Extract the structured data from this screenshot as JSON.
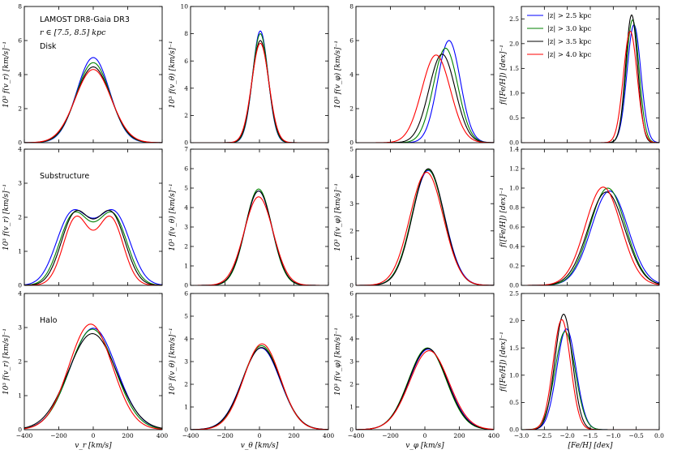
{
  "chart_data": {
    "type": "line",
    "annotations": {
      "title": "LAMOST DR8-Gaia DR3",
      "r_range": "r ∈ [7.5, 8.5] kpc",
      "rows": [
        "Disk",
        "Substructure",
        "Halo"
      ]
    },
    "legend": [
      {
        "label": "|z| > 2.5 kpc",
        "color": "#0000ff"
      },
      {
        "label": "|z| > 3.0 kpc",
        "color": "#008000"
      },
      {
        "label": "|z| > 3.5 kpc",
        "color": "#000000"
      },
      {
        "label": "|z| > 4.0 kpc",
        "color": "#ff0000"
      }
    ],
    "legend_placement": "top-left of top-right panel",
    "xlabels": [
      "v_r [km/s]",
      "v_θ [km/s]",
      "v_φ [km/s]",
      "[Fe/H] [dex]"
    ],
    "ylabels": [
      [
        "10³ f(v_r) [km/s]⁻¹",
        "10³ f(v_θ) [km/s]⁻¹",
        "10³ f(v_φ) [km/s]⁻¹",
        "f([Fe/H]) [dex]⁻¹"
      ],
      [
        "10³ f(v_r) [km/s]⁻¹",
        "10³ f(v_θ) [km/s]⁻¹",
        "10³ f(v_φ) [km/s]⁻¹",
        "f([Fe/H]) [dex]⁻¹"
      ],
      [
        "10³ f(v_r) [km/s]⁻¹",
        "10³ f(v_θ) [km/s]⁻¹",
        "10³ f(v_φ) [km/s]⁻¹",
        "f([Fe/H]) [dex]⁻¹"
      ]
    ],
    "xranges": [
      [
        -400,
        400
      ],
      [
        -400,
        400
      ],
      [
        -400,
        400
      ],
      [
        -3.0,
        0.0
      ]
    ],
    "xticks": [
      [
        -400,
        -200,
        0,
        200,
        400
      ],
      [
        -400,
        -200,
        0,
        200,
        400
      ],
      [
        -400,
        -200,
        0,
        200,
        400
      ],
      [
        -3.0,
        -2.5,
        -2.0,
        -1.5,
        -1.0,
        -0.5,
        0.0
      ]
    ],
    "xticklabels": [
      [
        "−400",
        "−200",
        "0",
        "200",
        "400"
      ],
      [
        "−400",
        "−200",
        "0",
        "200",
        "400"
      ],
      [
        "−400",
        "−200",
        "0",
        "200",
        "400"
      ],
      [
        "−3.0",
        "−2.5",
        "−2.0",
        "−1.5",
        "−1.0",
        "−0.5",
        "0.0"
      ]
    ],
    "panels": [
      [
        {
          "ylim": [
            0,
            8
          ],
          "yticks": [
            0,
            2,
            4,
            6,
            8
          ],
          "yticklabels": [
            "0",
            "2",
            "4",
            "6",
            "8"
          ],
          "series": [
            {
              "name": "|z| > 2.5 kpc",
              "color": "#0000ff",
              "g": [
                [
                  5.0,
                  0,
                  95
                ]
              ]
            },
            {
              "name": "|z| > 3.0 kpc",
              "color": "#008000",
              "g": [
                [
                  4.7,
                  0,
                  98
                ]
              ]
            },
            {
              "name": "|z| > 3.5 kpc",
              "color": "#000000",
              "g": [
                [
                  4.45,
                  0,
                  101
                ]
              ]
            },
            {
              "name": "|z| > 4.0 kpc",
              "color": "#ff0000",
              "g": [
                [
                  4.3,
                  0,
                  104
                ]
              ]
            }
          ]
        },
        {
          "ylim": [
            0,
            10
          ],
          "yticks": [
            0,
            2,
            4,
            6,
            8,
            10
          ],
          "yticklabels": [
            "0",
            "2",
            "4",
            "6",
            "8",
            "10"
          ],
          "series": [
            {
              "name": "|z| > 2.5 kpc",
              "color": "#0000ff",
              "g": [
                [
                  8.2,
                  5,
                  45
                ]
              ]
            },
            {
              "name": "|z| > 3.0 kpc",
              "color": "#008000",
              "g": [
                [
                  8.0,
                  5,
                  46
                ]
              ]
            },
            {
              "name": "|z| > 3.5 kpc",
              "color": "#000000",
              "g": [
                [
                  7.5,
                  5,
                  48
                ]
              ]
            },
            {
              "name": "|z| > 4.0 kpc",
              "color": "#ff0000",
              "g": [
                [
                  7.3,
                  5,
                  50
                ]
              ]
            }
          ]
        },
        {
          "ylim": [
            0,
            8
          ],
          "yticks": [
            0,
            2,
            4,
            6,
            8
          ],
          "yticklabels": [
            "0",
            "2",
            "4",
            "6",
            "8"
          ],
          "series": [
            {
              "name": "|z| > 2.5 kpc",
              "color": "#0000ff",
              "g": [
                [
                  6.0,
                  140,
                  66
                ]
              ]
            },
            {
              "name": "|z| > 3.0 kpc",
              "color": "#008000",
              "g": [
                [
                  5.55,
                  120,
                  71
                ]
              ]
            },
            {
              "name": "|z| > 3.5 kpc",
              "color": "#000000",
              "g": [
                [
                  5.2,
                  100,
                  76
                ]
              ]
            },
            {
              "name": "|z| > 4.0 kpc",
              "color": "#ff0000",
              "g": [
                [
                  5.15,
                  65,
                  83
                ]
              ]
            }
          ]
        },
        {
          "ylim": [
            0,
            2.75
          ],
          "yticks": [
            0,
            0.5,
            1,
            1.5,
            2,
            2.5
          ],
          "yticklabels": [
            "0.0",
            "0.5",
            "1.0",
            "1.5",
            "2.0",
            "2.5"
          ],
          "series": [
            {
              "name": "|z| > 2.5 kpc",
              "color": "#0000ff",
              "g": [
                [
                  2.38,
                  -0.55,
                  0.15
                ]
              ]
            },
            {
              "name": "|z| > 3.0 kpc",
              "color": "#008000",
              "g": [
                [
                  2.48,
                  -0.58,
                  0.14
                ]
              ]
            },
            {
              "name": "|z| > 3.5 kpc",
              "color": "#000000",
              "g": [
                [
                  2.58,
                  -0.6,
                  0.13
                ]
              ]
            },
            {
              "name": "|z| > 4.0 kpc",
              "color": "#ff0000",
              "g": [
                [
                  2.25,
                  -0.63,
                  0.15
                ]
              ]
            }
          ]
        }
      ],
      [
        {
          "ylim": [
            0,
            4
          ],
          "yticks": [
            0,
            1,
            2,
            3,
            4
          ],
          "yticklabels": [
            "0",
            "1",
            "2",
            "3",
            "4"
          ],
          "series": [
            {
              "name": "|z| > 2.5 kpc",
              "color": "#0000ff",
              "g": [
                [
                  1.6,
                  -140,
                  85
                ],
                [
                  1.6,
                  140,
                  85
                ],
                [
                  1.15,
                  0,
                  110
                ]
              ]
            },
            {
              "name": "|z| > 3.0 kpc",
              "color": "#008000",
              "g": [
                [
                  1.72,
                  -125,
                  80
                ],
                [
                  1.72,
                  125,
                  80
                ],
                [
                  0.85,
                  0,
                  95
                ]
              ]
            },
            {
              "name": "|z| > 3.5 kpc",
              "color": "#000000",
              "g": [
                [
                  1.78,
                  -115,
                  78
                ],
                [
                  1.78,
                  115,
                  78
                ],
                [
                  0.75,
                  0,
                  90
                ]
              ]
            },
            {
              "name": "|z| > 4.0 kpc",
              "color": "#ff0000",
              "g": [
                [
                  1.84,
                  -105,
                  72
                ],
                [
                  1.84,
                  105,
                  72
                ],
                [
                  0.35,
                  0,
                  80
                ]
              ]
            }
          ]
        },
        {
          "ylim": [
            0,
            7
          ],
          "yticks": [
            0,
            1,
            2,
            3,
            4,
            5,
            6,
            7
          ],
          "yticklabels": [
            "0",
            "1",
            "2",
            "3",
            "4",
            "5",
            "6",
            "7"
          ],
          "series": [
            {
              "name": "|z| > 2.5 kpc",
              "color": "#0000ff",
              "g": [
                [
                  4.85,
                  -5,
                  78
                ]
              ]
            },
            {
              "name": "|z| > 3.0 kpc",
              "color": "#008000",
              "g": [
                [
                  4.95,
                  -5,
                  77
                ]
              ]
            },
            {
              "name": "|z| > 3.5 kpc",
              "color": "#000000",
              "g": [
                [
                  4.85,
                  -5,
                  79
                ]
              ]
            },
            {
              "name": "|z| > 4.0 kpc",
              "color": "#ff0000",
              "g": [
                [
                  4.55,
                  -5,
                  84
                ]
              ]
            }
          ]
        },
        {
          "ylim": [
            0,
            5
          ],
          "yticks": [
            0,
            1,
            2,
            3,
            4,
            5
          ],
          "yticklabels": [
            "0",
            "1",
            "2",
            "3",
            "4",
            "5"
          ],
          "series": [
            {
              "name": "|z| > 2.5 kpc",
              "color": "#0000ff",
              "g": [
                [
                  4.22,
                  20,
                  94
                ]
              ]
            },
            {
              "name": "|z| > 3.0 kpc",
              "color": "#008000",
              "g": [
                [
                  4.25,
                  18,
                  93
                ]
              ]
            },
            {
              "name": "|z| > 3.5 kpc",
              "color": "#000000",
              "g": [
                [
                  4.28,
                  20,
                  92
                ]
              ]
            },
            {
              "name": "|z| > 4.0 kpc",
              "color": "#ff0000",
              "g": [
                [
                  4.15,
                  10,
                  97
                ]
              ]
            }
          ]
        },
        {
          "ylim": [
            0,
            1.4
          ],
          "yticks": [
            0,
            0.2,
            0.4,
            0.6,
            0.8,
            1.0,
            1.2,
            1.4
          ],
          "yticklabels": [
            "0.0",
            "0.2",
            "0.4",
            "0.6",
            "0.8",
            "1.0",
            "1.2",
            "1.4"
          ],
          "series": [
            {
              "name": "|z| > 2.5 kpc",
              "color": "#0000ff",
              "g": [
                [
                  0.97,
                  -1.08,
                  0.4
                ]
              ]
            },
            {
              "name": "|z| > 3.0 kpc",
              "color": "#008000",
              "g": [
                [
                  1.0,
                  -1.12,
                  0.39
                ]
              ]
            },
            {
              "name": "|z| > 3.5 kpc",
              "color": "#000000",
              "g": [
                [
                  0.96,
                  -1.15,
                  0.4
                ]
              ]
            },
            {
              "name": "|z| > 4.0 kpc",
              "color": "#ff0000",
              "g": [
                [
                  1.01,
                  -1.22,
                  0.39
                ]
              ]
            }
          ]
        }
      ],
      [
        {
          "ylim": [
            0,
            4
          ],
          "yticks": [
            0,
            1,
            2,
            3,
            4
          ],
          "yticklabels": [
            "0",
            "1",
            "2",
            "3",
            "4"
          ],
          "series": [
            {
              "name": "|z| > 2.5 kpc",
              "color": "#0000ff",
              "g": [
                [
                  2.98,
                  0,
                  135
                ]
              ]
            },
            {
              "name": "|z| > 3.0 kpc",
              "color": "#008000",
              "g": [
                [
                  2.95,
                  -5,
                  132
                ]
              ]
            },
            {
              "name": "|z| > 3.5 kpc",
              "color": "#000000",
              "g": [
                [
                  2.82,
                  -5,
                  140
                ]
              ]
            },
            {
              "name": "|z| > 4.0 kpc",
              "color": "#ff0000",
              "g": [
                [
                  3.1,
                  -15,
                  126
                ]
              ]
            }
          ]
        },
        {
          "ylim": [
            0,
            6
          ],
          "yticks": [
            0,
            1,
            2,
            3,
            4,
            5,
            6
          ],
          "yticklabels": [
            "0",
            "1",
            "2",
            "3",
            "4",
            "5",
            "6"
          ],
          "series": [
            {
              "name": "|z| > 2.5 kpc",
              "color": "#0000ff",
              "g": [
                [
                  3.6,
                  10,
                  110
                ]
              ]
            },
            {
              "name": "|z| > 3.0 kpc",
              "color": "#008000",
              "g": [
                [
                  3.7,
                  12,
                  108
                ]
              ]
            },
            {
              "name": "|z| > 3.5 kpc",
              "color": "#000000",
              "g": [
                [
                  3.62,
                  12,
                  110
                ]
              ]
            },
            {
              "name": "|z| > 4.0 kpc",
              "color": "#ff0000",
              "g": [
                [
                  3.78,
                  15,
                  106
                ]
              ]
            }
          ]
        },
        {
          "ylim": [
            0,
            6
          ],
          "yticks": [
            0,
            1,
            2,
            3,
            4,
            5,
            6
          ],
          "yticklabels": [
            "0",
            "1",
            "2",
            "3",
            "4",
            "5",
            "6"
          ],
          "series": [
            {
              "name": "|z| > 2.5 kpc",
              "color": "#0000ff",
              "g": [
                [
                  3.55,
                  20,
                  112
                ]
              ]
            },
            {
              "name": "|z| > 3.0 kpc",
              "color": "#008000",
              "g": [
                [
                  3.6,
                  15,
                  110
                ]
              ]
            },
            {
              "name": "|z| > 3.5 kpc",
              "color": "#000000",
              "g": [
                [
                  3.58,
                  18,
                  111
                ]
              ]
            },
            {
              "name": "|z| > 4.0 kpc",
              "color": "#ff0000",
              "g": [
                [
                  3.48,
                  25,
                  114
                ]
              ]
            }
          ]
        },
        {
          "ylim": [
            0,
            2.5
          ],
          "yticks": [
            0,
            0.5,
            1,
            1.5,
            2,
            2.5
          ],
          "yticklabels": [
            "0.0",
            "0.5",
            "1.0",
            "1.5",
            "2.0",
            "2.5"
          ],
          "series": [
            {
              "name": "|z| > 2.5 kpc",
              "color": "#0000ff",
              "g": [
                [
                  1.85,
                  -2.02,
                  0.21
                ]
              ]
            },
            {
              "name": "|z| > 3.0 kpc",
              "color": "#008000",
              "g": [
                [
                  1.8,
                  -2.05,
                  0.22
                ]
              ]
            },
            {
              "name": "|z| > 3.5 kpc",
              "color": "#000000",
              "g": [
                [
                  2.12,
                  -2.08,
                  0.19
                ]
              ]
            },
            {
              "name": "|z| > 4.0 kpc",
              "color": "#ff0000",
              "g": [
                [
                  2.02,
                  -2.12,
                  0.19
                ]
              ]
            }
          ]
        }
      ]
    ]
  }
}
